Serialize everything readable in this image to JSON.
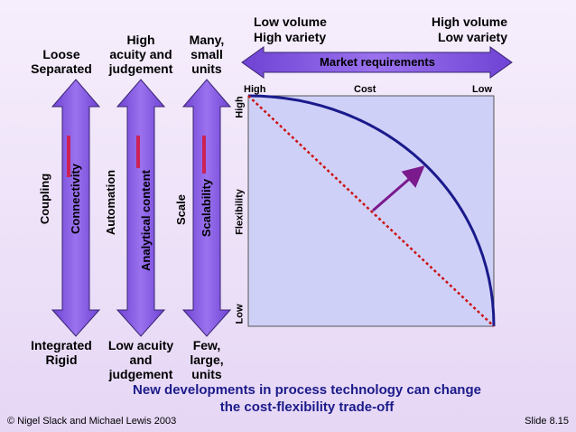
{
  "arrows": [
    {
      "top": "Loose\nSeparated",
      "bottom": "Integrated\nRigid",
      "outer": "Coupling",
      "inner": "Connectivity"
    },
    {
      "top": "High\nacuity and\njudgement",
      "bottom": "Low acuity\nand\njudgement",
      "outer": "Automation",
      "inner": "Analytical content"
    },
    {
      "top": "Many,\nsmall\nunits",
      "bottom": "Few,\nlarge,\nunits",
      "outer": "Scale",
      "inner": "Scalability"
    }
  ],
  "market": {
    "label": "Market requirements",
    "left_line1": "Low volume",
    "left_line2": "High variety",
    "right_line1": "High volume",
    "right_line2": "Low variety"
  },
  "chart": {
    "cost_label": "Cost",
    "cost_high": "High",
    "cost_low": "Low",
    "flex_label": "Flexibility",
    "flex_high": "High",
    "flex_low": "Low"
  },
  "footer": {
    "title_line1": "New developments in process technology can change",
    "title_line2": "the cost-flexibility trade-off",
    "copyright": "© Nigel Slack and Michael Lewis 2003",
    "slide": "Slide 8.15"
  },
  "colors": {
    "arrow_fill": "#8a5ee6",
    "arrow_edge": "#3a2470",
    "chart_bg": "#cfd0f7",
    "curve": "#1a1a8c",
    "dashed": "#cc1111",
    "shift_arrow": "#7a1a8c",
    "title": "#1b1b8a"
  }
}
